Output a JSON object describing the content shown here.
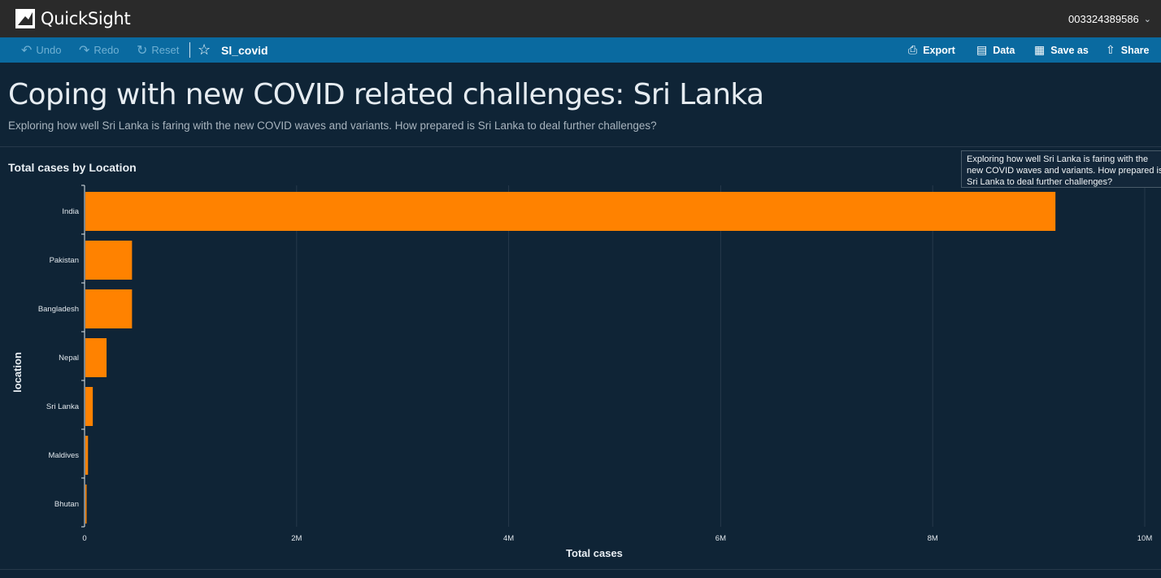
{
  "app": {
    "name": "QuickSight",
    "account": "003324389586"
  },
  "toolbar": {
    "undo_label": "Undo",
    "redo_label": "Redo",
    "reset_label": "Reset",
    "analysis_name": "Sl_covid",
    "export_label": "Export",
    "data_label": "Data",
    "save_as_label": "Save as",
    "share_label": "Share"
  },
  "sheet": {
    "title": "Coping with new COVID related challenges: Sri Lanka",
    "description": "Exploring how well Sri Lanka is faring with the new COVID waves and variants. How prepared is Sri Lanka to deal further challenges?"
  },
  "visual": {
    "title": "Total cases by Location",
    "tooltip_text": "Exploring how well Sri Lanka is faring with the new COVID waves and variants. How prepared is Sri Lanka to deal further challenges?"
  },
  "colors": {
    "bar": "#ff8200",
    "background": "#0f2436",
    "toolbar": "#0a6aa0",
    "appbar": "#2a2a2a"
  },
  "chart_data": {
    "type": "bar",
    "orientation": "horizontal",
    "title": "Total cases by Location",
    "xlabel": "Total cases",
    "ylabel": "location",
    "categories": [
      "India",
      "Pakistan",
      "Bangladesh",
      "Nepal",
      "Sri Lanka",
      "Maldives",
      "Bhutan"
    ],
    "values": [
      9150000,
      440000,
      440000,
      200000,
      70000,
      25000,
      1000
    ],
    "xlim": [
      0,
      10000000
    ],
    "xticks": [
      0,
      2000000,
      4000000,
      6000000,
      8000000,
      10000000
    ],
    "xtick_labels": [
      "0",
      "2M",
      "4M",
      "6M",
      "8M",
      "10M"
    ],
    "grid": true
  }
}
